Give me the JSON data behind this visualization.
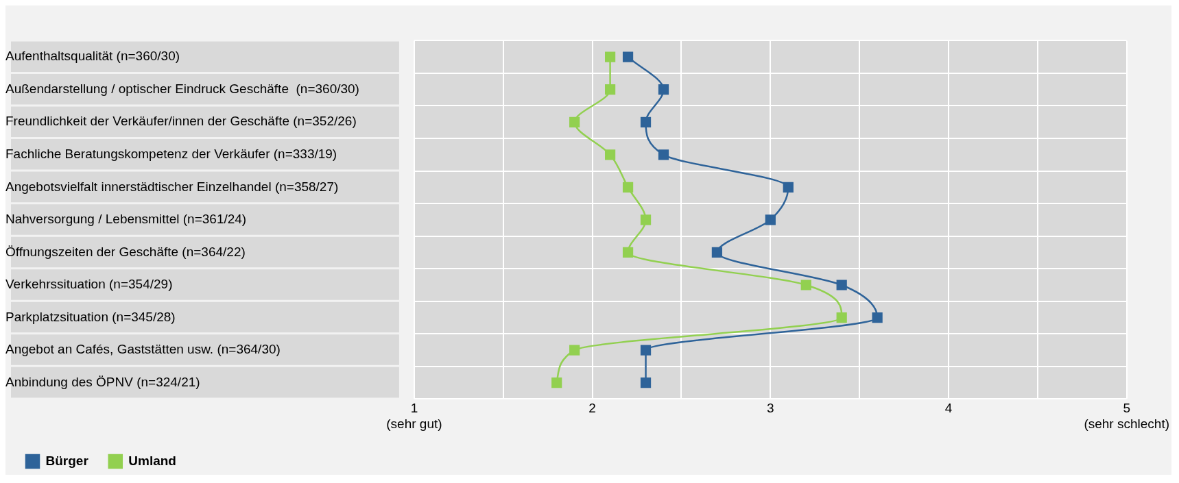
{
  "chart_data": {
    "type": "line",
    "orientation": "horizontal",
    "categories": [
      "Aufenthaltsqualität (n=360/30)",
      "Außendarstellung / optischer Eindruck Geschäfte  (n=360/30)",
      "Freundlichkeit der Verkäufer/innen der Geschäfte (n=352/26)",
      "Fachliche Beratungskompetenz der Verkäufer (n=333/19)",
      "Angebotsvielfalt innerstädtischer Einzelhandel (n=358/27)",
      "Nahversorgung / Lebensmittel (n=361/24)",
      "Öffnungszeiten der Geschäfte (n=364/22)",
      "Verkehrssituation (n=354/29)",
      "Parkplatzsituation (n=345/28)",
      "Angebot an Cafés, Gaststätten usw. (n=364/30)",
      "Anbindung des ÖPNV (n=324/21)"
    ],
    "series": [
      {
        "name": "Bürger",
        "color": "#2e6399",
        "values": [
          2.2,
          2.4,
          2.3,
          2.4,
          3.1,
          3.0,
          2.7,
          3.4,
          3.6,
          2.3,
          2.3
        ]
      },
      {
        "name": "Umland",
        "color": "#92d050",
        "values": [
          2.1,
          2.1,
          1.9,
          2.1,
          2.2,
          2.3,
          2.2,
          3.2,
          3.4,
          1.9,
          1.8
        ]
      }
    ],
    "xlim": [
      1,
      5
    ],
    "xticks": [
      {
        "value": 1,
        "label": "1\n(sehr gut)"
      },
      {
        "value": 1.5,
        "label": null
      },
      2,
      {
        "value": 2.5,
        "label": null
      },
      3,
      {
        "value": 3.5,
        "label": null
      },
      4,
      {
        "value": 4.5,
        "label": null
      },
      {
        "value": 5,
        "label": "5\n(sehr schlecht)"
      }
    ],
    "grid": true,
    "legend": "bottom left",
    "marker": "square",
    "line_style": "solid"
  }
}
